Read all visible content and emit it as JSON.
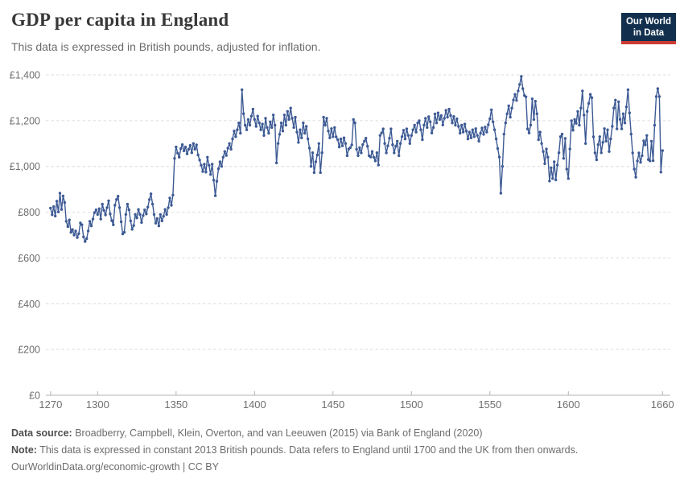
{
  "header": {
    "title": "GDP per capita in England",
    "subtitle": "This data is expressed in British pounds, adjusted for inflation.",
    "logo": {
      "line1": "Our World",
      "line2": "in Data",
      "bg_color": "#12304e",
      "stripe_color": "#cc3b33"
    }
  },
  "chart_data": {
    "type": "line",
    "title": "GDP per capita in England",
    "subtitle": "This data is expressed in British pounds, adjusted for inflation.",
    "series_name": "England",
    "line_color": "#3d5a94",
    "markers": true,
    "grid": "dashed horizontal",
    "legend": "none",
    "currency_prefix": "£",
    "ylabel": "",
    "xlabel": "",
    "ylim": [
      0,
      1400
    ],
    "xlim": [
      1267,
      1665
    ],
    "y_ticks": [
      0,
      200,
      400,
      600,
      800,
      1000,
      1200,
      1400
    ],
    "x_ticks": [
      1270,
      1300,
      1350,
      1400,
      1450,
      1500,
      1550,
      1600,
      1660
    ],
    "start_year": 1270,
    "end_year": 1660,
    "x_interval": 1,
    "values": [
      818,
      789,
      824,
      783,
      848,
      801,
      883,
      812,
      871,
      842,
      760,
      737,
      766,
      712,
      724,
      700,
      718,
      689,
      706,
      753,
      745,
      692,
      672,
      684,
      718,
      760,
      740,
      770,
      798,
      810,
      790,
      815,
      770,
      835,
      808,
      788,
      820,
      850,
      792,
      763,
      745,
      830,
      855,
      870,
      820,
      758,
      705,
      712,
      790,
      835,
      810,
      762,
      725,
      742,
      790,
      775,
      812,
      790,
      755,
      785,
      810,
      792,
      822,
      855,
      880,
      835,
      790,
      752,
      772,
      740,
      790,
      762,
      782,
      812,
      790,
      820,
      862,
      830,
      875,
      1035,
      1085,
      1058,
      1040,
      1078,
      1095,
      1068,
      1085,
      1055,
      1075,
      1092,
      1060,
      1100,
      1075,
      1094,
      1050,
      1028,
      1005,
      978,
      1010,
      975,
      1040,
      1005,
      965,
      1010,
      940,
      872,
      935,
      990,
      1020,
      1000,
      1040,
      1065,
      1048,
      1080,
      1100,
      1075,
      1120,
      1155,
      1130,
      1160,
      1190,
      1145,
      1335,
      1230,
      1180,
      1160,
      1205,
      1180,
      1220,
      1250,
      1205,
      1175,
      1220,
      1190,
      1160,
      1185,
      1135,
      1210,
      1170,
      1145,
      1195,
      1170,
      1225,
      1180,
      1015,
      1100,
      1140,
      1190,
      1155,
      1225,
      1180,
      1240,
      1205,
      1255,
      1210,
      1170,
      1215,
      1150,
      1105,
      1160,
      1125,
      1190,
      1145,
      1175,
      1120,
      1080,
      1000,
      1060,
      973,
      1020,
      1050,
      1100,
      973,
      1060,
      1215,
      1180,
      1210,
      1155,
      1125,
      1165,
      1130,
      1170,
      1129,
      1117,
      1085,
      1120,
      1090,
      1125,
      1100,
      1047,
      1076,
      1082,
      1094,
      1205,
      1190,
      1075,
      1047,
      1082,
      1059,
      1095,
      1110,
      1123,
      1088,
      1047,
      1041,
      1065,
      1040,
      1024,
      1060,
      1006,
      1135,
      1146,
      1164,
      1100,
      1059,
      1090,
      1123,
      1164,
      1095,
      1059,
      1088,
      1110,
      1047,
      1100,
      1130,
      1158,
      1120,
      1164,
      1135,
      1100,
      1135,
      1160,
      1180,
      1150,
      1190,
      1200,
      1160,
      1117,
      1180,
      1210,
      1170,
      1217,
      1195,
      1146,
      1170,
      1229,
      1190,
      1234,
      1205,
      1222,
      1181,
      1210,
      1245,
      1215,
      1250,
      1222,
      1190,
      1218,
      1180,
      1208,
      1175,
      1145,
      1180,
      1150,
      1185,
      1155,
      1120,
      1150,
      1125,
      1160,
      1130,
      1165,
      1135,
      1110,
      1145,
      1168,
      1140,
      1172,
      1150,
      1182,
      1208,
      1247,
      1195,
      1160,
      1120,
      1078,
      1041,
      883,
      1000,
      1141,
      1190,
      1230,
      1265,
      1215,
      1255,
      1290,
      1315,
      1288,
      1330,
      1358,
      1393,
      1340,
      1310,
      1304,
      1164,
      1146,
      1181,
      1295,
      1205,
      1285,
      1230,
      1117,
      1150,
      1100,
      1065,
      1012,
      1076,
      1040,
      936,
      994,
      947,
      1020,
      941,
      1006,
      1060,
      1130,
      1141,
      1035,
      1122,
      988,
      947,
      1076,
      1200,
      1158,
      1205,
      1188,
      1240,
      1180,
      1255,
      1330,
      1224,
      1100,
      1240,
      1275,
      1315,
      1300,
      1129,
      1059,
      1029,
      1095,
      1130,
      1060,
      1105,
      1165,
      1110,
      1160,
      1065,
      1120,
      1175,
      1255,
      1290,
      1164,
      1282,
      1206,
      1164,
      1230,
      1190,
      1260,
      1335,
      1234,
      1141,
      1059,
      988,
      953,
      1024,
      1059,
      1018,
      1047,
      1112,
      1094,
      1135,
      1030,
      1024,
      1110,
      1025,
      1180,
      1305,
      1340,
      1305,
      975,
      1069
    ]
  },
  "footer": {
    "data_source_label": "Data source:",
    "data_source_text": " Broadberry, Campbell, Klein, Overton, and van Leeuwen (2015) via Bank of England (2020)",
    "note_label": "Note:",
    "note_text": " This data is expressed in constant 2013 British pounds. Data refers to England until 1700 and the UK from then onwards.",
    "citation": "OurWorldinData.org/economic-growth | CC BY"
  }
}
